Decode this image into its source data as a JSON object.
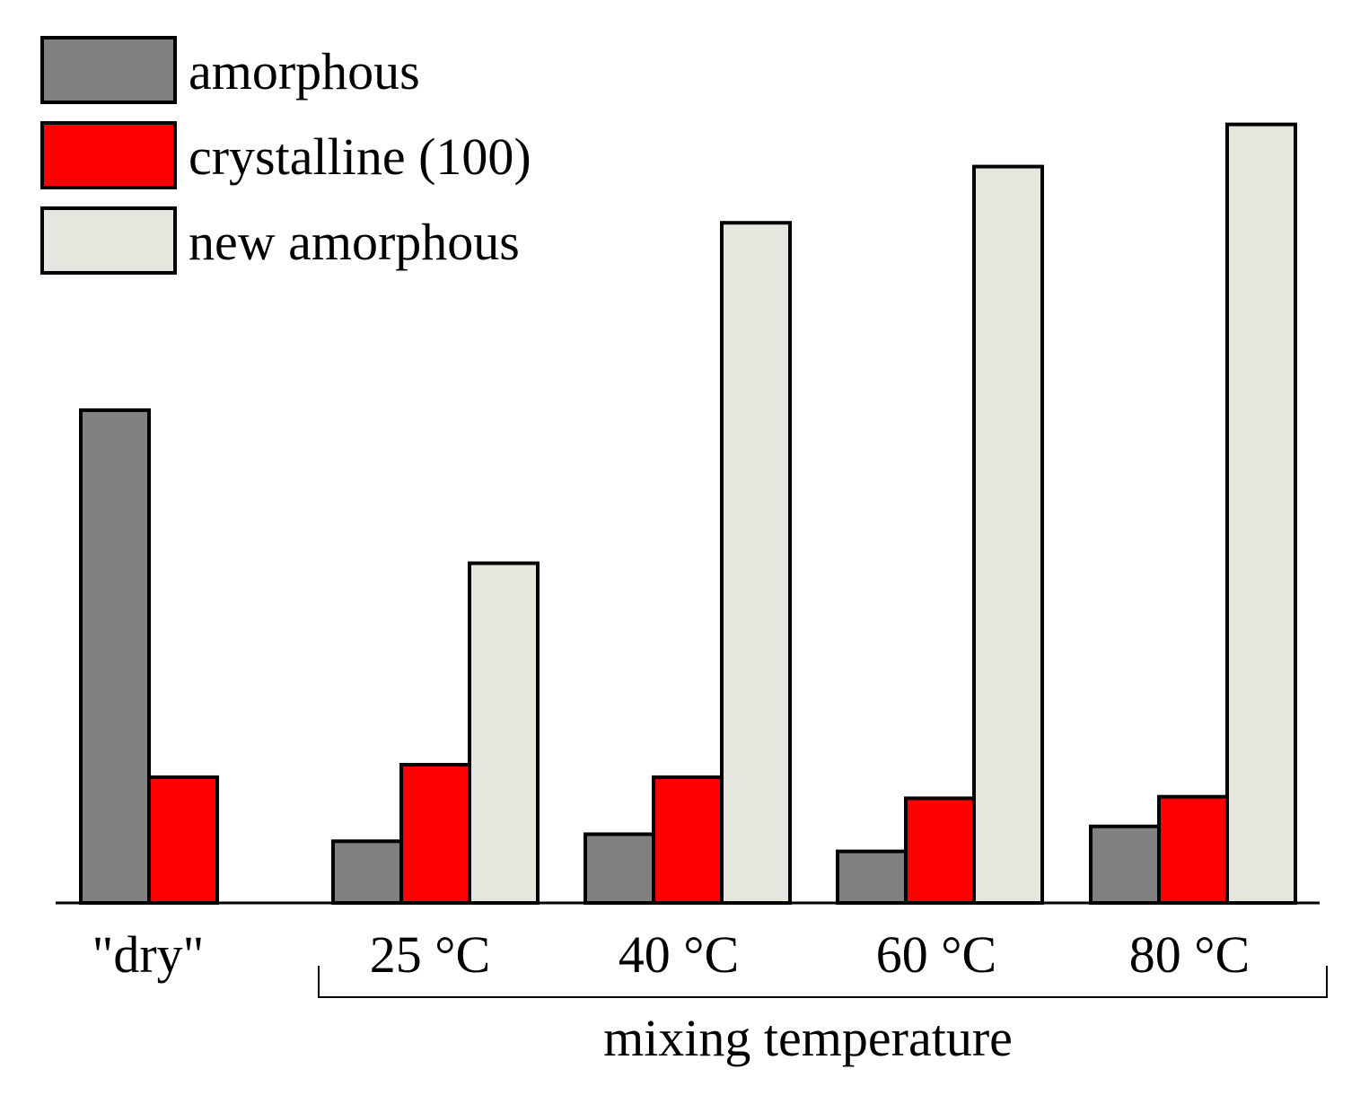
{
  "chart_data": {
    "type": "bar",
    "title": "",
    "xlabel": "mixing temperature",
    "ylabel": "",
    "ylim": [
      0,
      100
    ],
    "categories": [
      "\"dry\"",
      "25 °C",
      "40 °C",
      "60 °C",
      "80 °C"
    ],
    "bracket_label": "mixing temperature",
    "series": [
      {
        "name": "amorphous",
        "color": "#808080",
        "values": [
          63.1,
          7.9,
          8.8,
          6.6,
          9.8
        ]
      },
      {
        "name": "crystalline (100)",
        "color": "#ff0000",
        "values": [
          16.1,
          17.7,
          16.1,
          13.4,
          13.6
        ]
      },
      {
        "name": "new amorphous",
        "color": "#e6e6df",
        "values": [
          null,
          43.5,
          87.1,
          94.3,
          99.7
        ]
      }
    ],
    "legend": {
      "position": "top-left",
      "entries": [
        "amorphous",
        "crystalline (100)",
        "new amorphous"
      ]
    },
    "grid": false
  }
}
